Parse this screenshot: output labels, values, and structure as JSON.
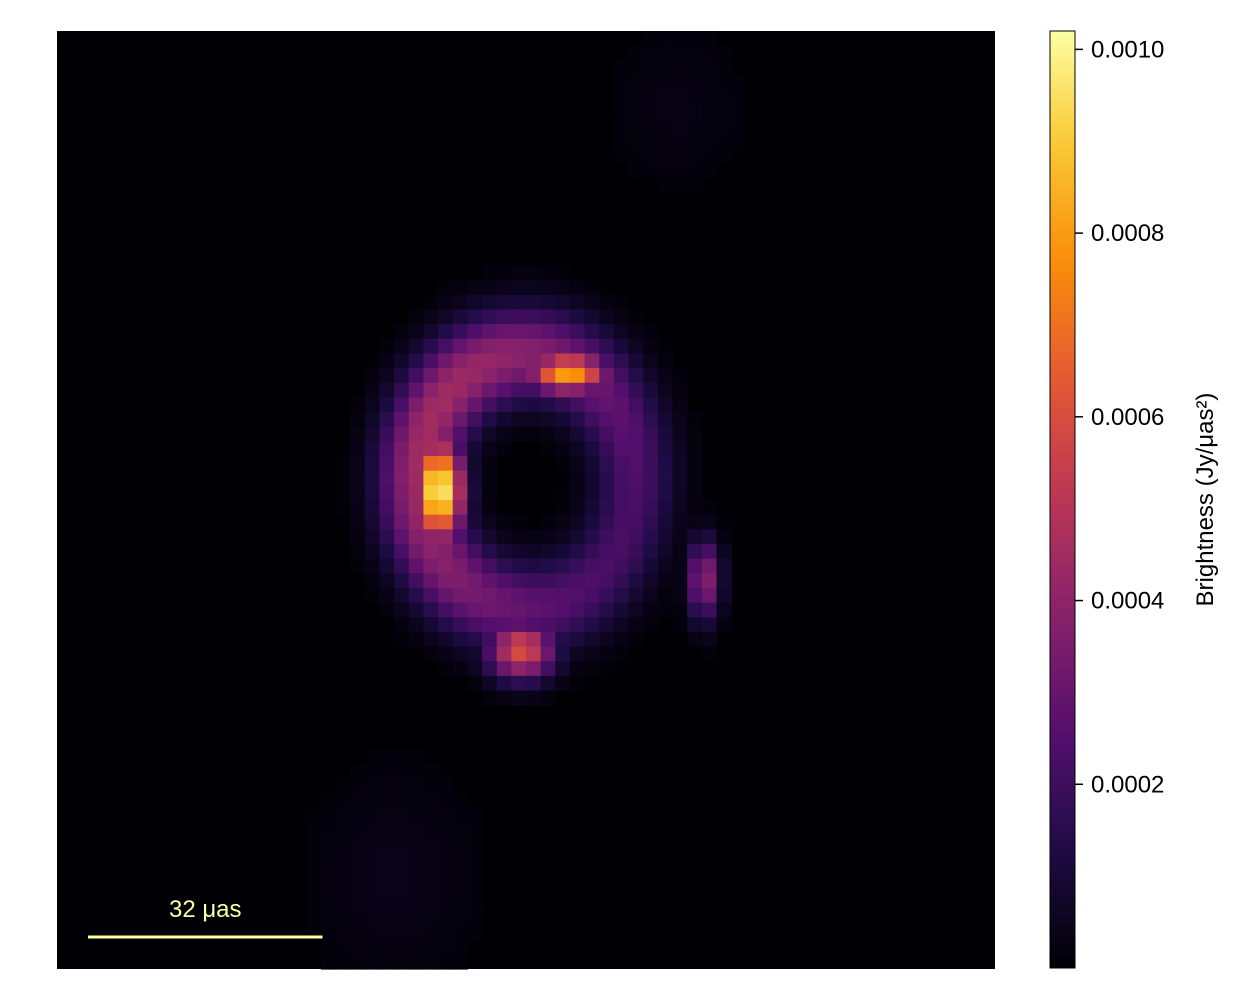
{
  "chart_data": {
    "type": "heatmap",
    "title": "",
    "colormap": "inferno",
    "colorbar": {
      "label": "Brightness (Jy/μas²)",
      "min": 0,
      "max": 0.00102,
      "ticks": [
        0.0002,
        0.0004,
        0.0006,
        0.0008,
        0.001
      ],
      "tick_labels": [
        "0.0002",
        "0.0004",
        "0.0006",
        "0.0008",
        "0.0010"
      ]
    },
    "scale_bar": {
      "label": "32 μas",
      "length_uas": 32,
      "color": "#fcffa4"
    },
    "image": {
      "field_of_view_uas": 128,
      "grid": 64,
      "ring": {
        "center_x": 0.5,
        "center_y": 0.48,
        "radius_x": 0.115,
        "radius_y": 0.135,
        "width": 0.03,
        "base_brightness": 0.00045
      },
      "hotspots": [
        {
          "x": 0.407,
          "y": 0.49,
          "sx": 0.018,
          "sy": 0.038,
          "brightness": 0.00102
        },
        {
          "x": 0.545,
          "y": 0.365,
          "sx": 0.03,
          "sy": 0.015,
          "brightness": 0.00082
        },
        {
          "x": 0.495,
          "y": 0.66,
          "sx": 0.025,
          "sy": 0.022,
          "brightness": 0.0006
        },
        {
          "x": 0.69,
          "y": 0.585,
          "sx": 0.012,
          "sy": 0.03,
          "brightness": 0.0004
        }
      ],
      "haze": [
        {
          "x": 0.36,
          "y": 0.9,
          "sx": 0.06,
          "sy": 0.08,
          "brightness": 4e-05
        },
        {
          "x": 0.66,
          "y": 0.08,
          "sx": 0.05,
          "sy": 0.06,
          "brightness": 3e-05
        }
      ]
    }
  }
}
